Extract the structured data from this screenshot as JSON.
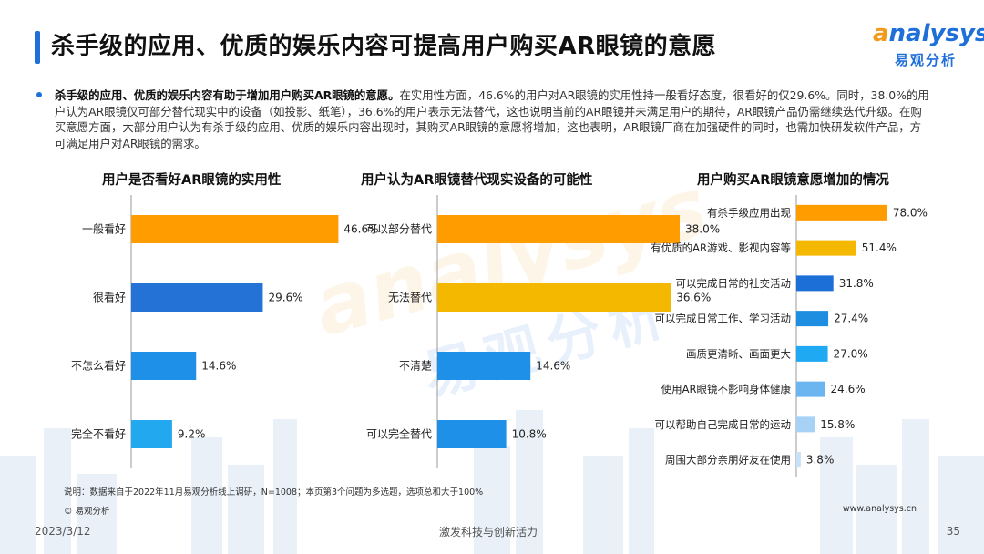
{
  "header": {
    "title": "杀手级的应用、优质的娱乐内容可提高用户购买AR眼镜的意愿",
    "logo_en_first": "a",
    "logo_en_rest": "nalysys",
    "logo_cn": "易观分析"
  },
  "summary": {
    "bold": "杀手级的应用、优质的娱乐内容有助于增加用户购买AR眼镜的意愿。",
    "text": "在实用性方面，46.6%的用户对AR眼镜的实用性持一般看好态度，很看好的仅29.6%。同时，38.0%的用户认为AR眼镜仅可部分替代现实中的设备（如投影、纸笔），36.6%的用户表示无法替代，这也说明当前的AR眼镜并未满足用户的期待，AR眼镜产品仍需继续迭代升级。在购买意愿方面，大部分用户认为有杀手级的应用、优质的娱乐内容出现时，其购买AR眼镜的意愿将增加，这也表明，AR眼镜厂商在加强硬件的同时，也需加快研发软件产品，方可满足用户对AR眼镜的需求。"
  },
  "watermark": {
    "en": "analysys",
    "cn": "易观分析"
  },
  "chart_data": [
    {
      "type": "bar",
      "orientation": "horizontal",
      "title": "用户是否看好AR眼镜的实用性",
      "categories": [
        "一般看好",
        "很看好",
        "不怎么看好",
        "完全不看好"
      ],
      "values": [
        46.6,
        29.6,
        14.6,
        9.2
      ],
      "labels": [
        "46.6%",
        "29.6%",
        "14.6%",
        "9.2%"
      ],
      "colors": [
        "#ff9c00",
        "#2472d6",
        "#1e90e8",
        "#22a8ef"
      ],
      "xlim": [
        0,
        50
      ],
      "grid": false
    },
    {
      "type": "bar",
      "orientation": "horizontal",
      "title": "用户认为AR眼镜替代现实设备的可能性",
      "categories": [
        "可以部分替代",
        "无法替代",
        "不清楚",
        "可以完全替代"
      ],
      "values": [
        38.0,
        36.6,
        14.6,
        10.8
      ],
      "labels": [
        "38.0%",
        "36.6%",
        "14.6%",
        "10.8%"
      ],
      "colors": [
        "#ff9c00",
        "#f5b800",
        "#1e90e8",
        "#1e90e8"
      ],
      "xlim": [
        0,
        50
      ],
      "grid": false
    },
    {
      "type": "bar",
      "orientation": "horizontal",
      "title": "用户购买AR眼镜意愿增加的情况",
      "categories": [
        "有杀手级应用出现",
        "有优质的AR游戏、影视内容等",
        "可以完成日常的社交活动",
        "可以完成日常工作、学习活动",
        "画质更清晰、画面更大",
        "使用AR眼镜不影响身体健康",
        "可以帮助自己完成日常的运动",
        "周围大部分亲朋好友在使用"
      ],
      "values": [
        78.0,
        51.4,
        31.8,
        27.4,
        27.0,
        24.6,
        15.8,
        3.8
      ],
      "labels": [
        "78.0%",
        "51.4%",
        "31.8%",
        "27.4%",
        "27.0%",
        "24.6%",
        "15.8%",
        "3.8%"
      ],
      "colors": [
        "#ff9c00",
        "#f5b800",
        "#1b6fd6",
        "#1e8fe0",
        "#1ea9f2",
        "#6bb6f0",
        "#a8d2f5",
        "#c6e1f8"
      ],
      "xlim": [
        0,
        100
      ],
      "grid": false
    }
  ],
  "footer": {
    "note": "说明：数据来自于2022年11月易观分析线上调研，N=1008；本页第3个问题为多选题，选项总和大于100%",
    "copyright": "© 易观分析",
    "website": "www.analysys.cn",
    "date": "2023/3/12",
    "slogan": "激发科技与创新活力",
    "page": "35"
  }
}
